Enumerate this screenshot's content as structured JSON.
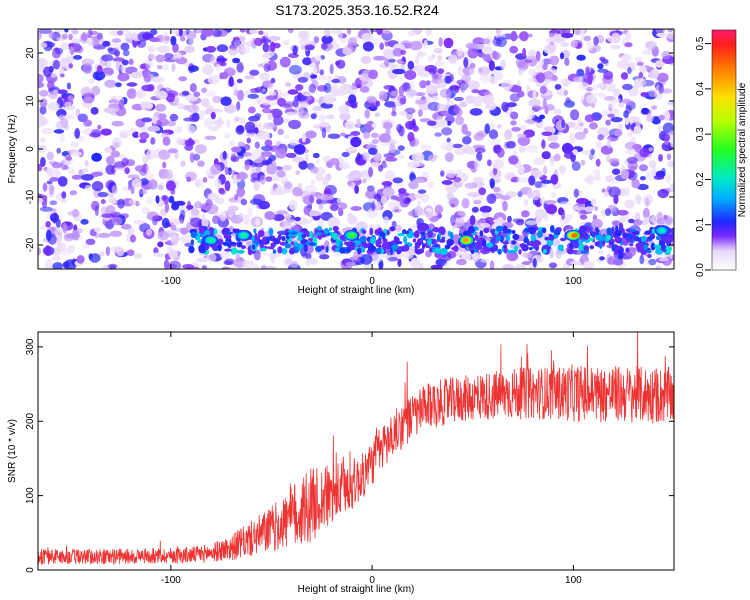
{
  "title": "S173.2025.353.16.52.R24",
  "chart_data": [
    {
      "type": "heatmap",
      "title": "S173.2025.353.16.52.R24",
      "xlabel": "Height of straight line (km)",
      "ylabel": "Frequency (Hz)",
      "xlim": [
        -166,
        150
      ],
      "ylim": [
        -25,
        25
      ],
      "x_ticks": [
        -100,
        0,
        100
      ],
      "x_tick_labels": [
        "-100",
        "0",
        "100"
      ],
      "y_ticks": [
        -20,
        -10,
        0,
        10,
        20
      ],
      "y_tick_labels": [
        "-20",
        "-10",
        "0",
        "10",
        "20"
      ],
      "colorbar": {
        "label": "Normalized spectral amplitude",
        "range": [
          0,
          0.53
        ],
        "ticks": [
          0,
          0.1,
          0.2,
          0.3,
          0.4,
          0.5
        ],
        "tick_labels": [
          "0.0",
          "0.1",
          "0.2",
          "0.3",
          "0.4",
          "0.5"
        ],
        "colormap": "rainbow"
      },
      "signal_band": {
        "freq_center": -19,
        "freq_halfwidth": 2.5,
        "x_start": -90,
        "x_end": 150
      },
      "hotspots": [
        {
          "x": -80,
          "y": -19,
          "value": 0.22
        },
        {
          "x": -64,
          "y": -18,
          "value": 0.22
        },
        {
          "x": -10,
          "y": -18,
          "value": 0.27
        },
        {
          "x": 47,
          "y": -19,
          "value": 0.42
        },
        {
          "x": 100,
          "y": -18,
          "value": 0.45
        },
        {
          "x": 144,
          "y": -17,
          "value": 0.2
        }
      ]
    },
    {
      "type": "line",
      "xlabel": "Height of straight line (km)",
      "ylabel": "SNR (10 * v/v)",
      "xlim": [
        -166,
        150
      ],
      "ylim": [
        0,
        320
      ],
      "x_ticks": [
        -100,
        0,
        100
      ],
      "x_tick_labels": [
        "-100",
        "0",
        "100"
      ],
      "y_ticks": [
        0,
        100,
        200,
        300
      ],
      "y_tick_labels": [
        "0",
        "100",
        "200",
        "300"
      ],
      "color": "#ee3333",
      "series": [
        {
          "x": [
            -166,
            -150,
            -130,
            -110,
            -90,
            -80,
            -70,
            -60,
            -50,
            -40,
            -35,
            -30,
            -25,
            -20,
            -15,
            -10,
            -5,
            0,
            5,
            10,
            15,
            20,
            25,
            30,
            40,
            50,
            60,
            70,
            80,
            90,
            100,
            110,
            120,
            130,
            140,
            150
          ],
          "values": [
            18,
            18,
            18,
            19,
            20,
            23,
            30,
            42,
            55,
            70,
            80,
            88,
            95,
            100,
            108,
            115,
            125,
            145,
            165,
            180,
            195,
            205,
            215,
            222,
            228,
            232,
            235,
            237,
            238,
            238,
            238,
            237,
            237,
            236,
            235,
            234
          ],
          "noise": [
            15,
            15,
            15,
            15,
            16,
            18,
            25,
            35,
            45,
            60,
            80,
            70,
            65,
            60,
            55,
            50,
            45,
            45,
            45,
            45,
            45,
            45,
            45,
            45,
            45,
            45,
            48,
            50,
            50,
            52,
            55,
            55,
            55,
            55,
            55,
            55
          ]
        }
      ]
    }
  ]
}
